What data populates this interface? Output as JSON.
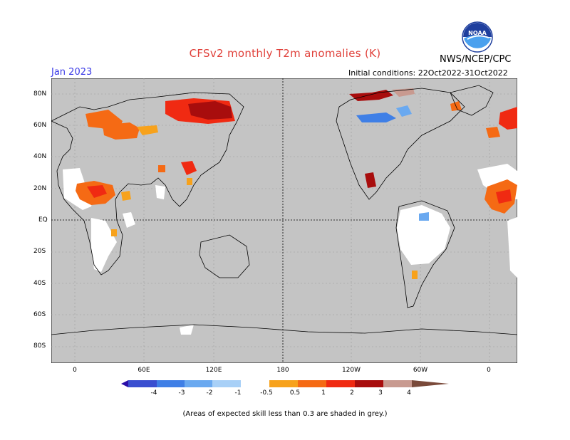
{
  "title": "CFSv2 monthly T2m anomalies (K)",
  "month_label": "Jan 2023",
  "agency": "NWS/NCEP/CPC",
  "logo_text": "NOAA",
  "initial_conditions": "Initial conditions: 22Oct2022-31Oct2022",
  "footnote": "(Areas of expected skill less than 0.3 are shaded in grey.)",
  "lat_labels": [
    "80N",
    "60N",
    "40N",
    "20N",
    "EQ",
    "20S",
    "40S",
    "60S",
    "80S"
  ],
  "lon_labels": [
    "0",
    "60E",
    "120E",
    "180",
    "120W",
    "60W",
    "0"
  ],
  "colorbar": {
    "labels": [
      "-4",
      "-3",
      "-2",
      "-1",
      "-0.5",
      "0.5",
      "1",
      "2",
      "3",
      "4"
    ],
    "colors": [
      "#2a0ea8",
      "#3a4fd0",
      "#3f7fe6",
      "#6aa9f0",
      "#a8d0f7",
      "#ffffff",
      "#f7a21c",
      "#f56a14",
      "#f02a12",
      "#a80d0d",
      "#c89a90",
      "#7a4a3a"
    ]
  },
  "colors": {
    "land_grey": "#c2c2c2",
    "ocean_grey": "#c4c4c4",
    "title_red": "#e0403a",
    "month_blue": "#3a3ae6"
  }
}
